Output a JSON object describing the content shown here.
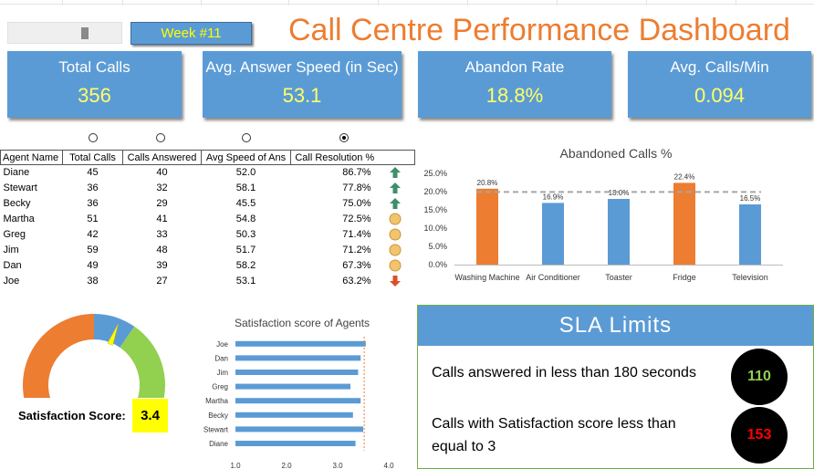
{
  "header": {
    "week_label": "Week #11",
    "title": "Call Centre Performance Dashboard"
  },
  "kpis": [
    {
      "label": "Total Calls",
      "value": "356"
    },
    {
      "label": "Avg. Answer Speed (in Sec)",
      "value": "53.1"
    },
    {
      "label": "Abandon Rate",
      "value": "18.8%"
    },
    {
      "label": "Avg. Calls/Min",
      "value": "0.094"
    }
  ],
  "colors": {
    "blue": "#5b9bd5",
    "orange": "#ed7d31",
    "green": "#92d050",
    "yellow": "#ffff00"
  },
  "table": {
    "headers": [
      "Agent Name",
      "Total Calls",
      "Calls Answered",
      "Avg Speed of Ans",
      "Call Resolution %"
    ],
    "selected_radio": 3,
    "rows": [
      {
        "name": "Diane",
        "total": "45",
        "answered": "40",
        "speed": "52.0",
        "resolution": "86.7%",
        "icon": "green-up-arrow-icon"
      },
      {
        "name": "Stewart",
        "total": "36",
        "answered": "32",
        "speed": "58.1",
        "resolution": "77.8%",
        "icon": "green-up-arrow-icon"
      },
      {
        "name": "Becky",
        "total": "36",
        "answered": "29",
        "speed": "45.5",
        "resolution": "75.0%",
        "icon": "green-up-arrow-icon"
      },
      {
        "name": "Martha",
        "total": "51",
        "answered": "41",
        "speed": "54.8",
        "resolution": "72.5%",
        "icon": "yellow-circle-icon"
      },
      {
        "name": "Greg",
        "total": "42",
        "answered": "33",
        "speed": "50.3",
        "resolution": "71.4%",
        "icon": "yellow-circle-icon"
      },
      {
        "name": "Jim",
        "total": "59",
        "answered": "48",
        "speed": "51.7",
        "resolution": "71.2%",
        "icon": "yellow-circle-icon"
      },
      {
        "name": "Dan",
        "total": "49",
        "answered": "39",
        "speed": "58.2",
        "resolution": "67.3%",
        "icon": "yellow-circle-icon"
      },
      {
        "name": "Joe",
        "total": "38",
        "answered": "27",
        "speed": "53.1",
        "resolution": "63.2%",
        "icon": "red-down-arrow-icon"
      }
    ]
  },
  "chart_data": [
    {
      "type": "bar",
      "title": "Abandoned Calls %",
      "categories": [
        "Washing Machine",
        "Air Conditioner",
        "Toaster",
        "Fridge",
        "Television"
      ],
      "values": [
        20.8,
        16.9,
        18.0,
        22.4,
        16.5
      ],
      "value_labels": [
        "20.8%",
        "16.9%",
        "18.0%",
        "22.4%",
        "16.5%"
      ],
      "bar_colors": [
        "#ed7d31",
        "#5b9bd5",
        "#5b9bd5",
        "#ed7d31",
        "#5b9bd5"
      ],
      "reference_line": 19.9,
      "yticks": [
        "0.0%",
        "5.0%",
        "10.0%",
        "15.0%",
        "20.0%",
        "25.0%"
      ],
      "ylim": [
        0,
        25
      ]
    },
    {
      "type": "bar",
      "orientation": "horizontal",
      "title": "Satisfaction score of Agents",
      "categories": [
        "Joe",
        "Dan",
        "Jim",
        "Greg",
        "Martha",
        "Becky",
        "Stewart",
        "Diane"
      ],
      "values": [
        3.55,
        3.45,
        3.4,
        3.25,
        3.45,
        3.3,
        3.5,
        3.35
      ],
      "reference_line": 3.52,
      "xticks": [
        "1.0",
        "2.0",
        "3.0",
        "4.0"
      ],
      "xlim": [
        1,
        4
      ]
    }
  ],
  "gauge": {
    "value": 3.4,
    "min": 1,
    "max": 5
  },
  "satisfaction": {
    "label": "Satisfaction Score:",
    "value": "3.4"
  },
  "sla": {
    "title": "SLA Limits",
    "items": [
      {
        "text": "Calls answered in less than 180 seconds",
        "value": "110",
        "color": "#92d050"
      },
      {
        "text": "Calls with Satisfaction score less than equal to 3",
        "value": "153",
        "color": "#ff0000"
      }
    ]
  }
}
